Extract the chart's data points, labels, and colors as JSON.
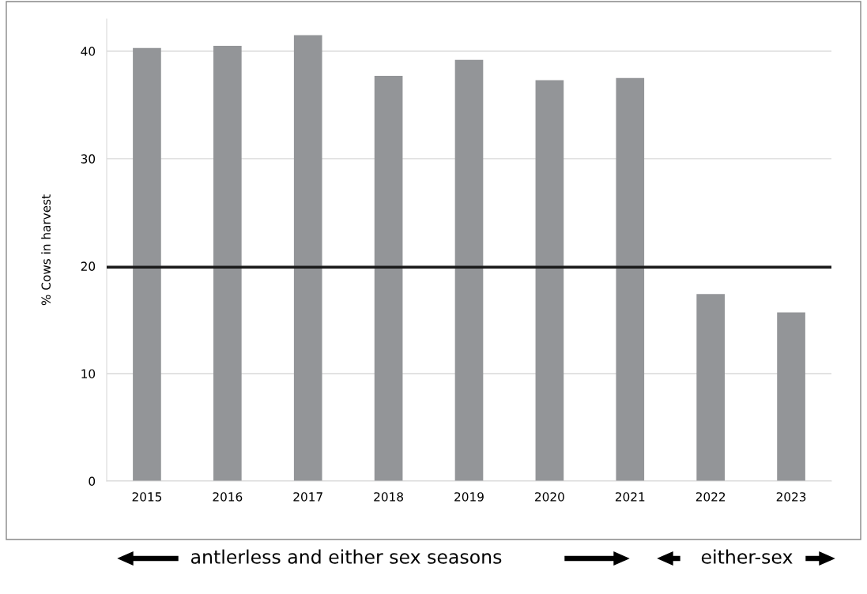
{
  "chart_data": {
    "type": "bar",
    "ylabel": "% Cows in harvest",
    "categories": [
      "2015",
      "2016",
      "2017",
      "2018",
      "2019",
      "2020",
      "2021",
      "2022",
      "2023"
    ],
    "values": [
      40.3,
      40.5,
      41.5,
      37.7,
      39.2,
      37.3,
      37.5,
      17.4,
      15.7
    ],
    "color": "#939598",
    "ylim": [
      0,
      43
    ],
    "yticks": [
      0,
      10,
      20,
      30,
      40
    ],
    "grid": "y",
    "ref_lines": [
      {
        "axis": "y",
        "value": 19.9,
        "color": "#1a1a1a"
      }
    ],
    "annotations": [
      "antlerless and either sex seasons",
      "either-sex"
    ]
  }
}
